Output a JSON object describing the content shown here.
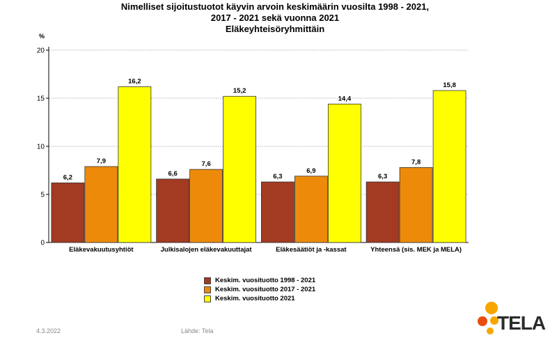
{
  "title_lines": [
    "Nimelliset sijoitustuotot käyvin arvoin keskimäärin vuosilta 1998 - 2021,",
    "2017 - 2021 sekä vuonna 2021",
    "Eläkeyhteisöryhmittäin"
  ],
  "chart_data": {
    "type": "bar",
    "title": "Nimelliset sijoitustuotot käyvin arvoin keskimäärin vuosilta 1998 - 2021, 2017 - 2021 sekä vuonna 2021 Eläkeyhteisöryhmittäin",
    "ylabel": "%",
    "xlabel": "",
    "ylim": [
      0,
      20
    ],
    "yticks": [
      0,
      5,
      10,
      15,
      20
    ],
    "grid": true,
    "legend_position": "bottom",
    "categories": [
      "Eläkevakuutusyhtiöt",
      "Julkisalojen eläkevakuuttajat",
      "Eläkesäätiöt ja -kassat",
      "Yhteensä (sis. MEK ja MELA)"
    ],
    "series": [
      {
        "name": "Keskim. vuosituotto 1998 - 2021",
        "color": "#a33a22",
        "values": [
          6.2,
          6.6,
          6.3,
          6.3
        ],
        "labels": [
          "6,2",
          "6,6",
          "6,3",
          "6,3"
        ]
      },
      {
        "name": "Keskim. vuosituotto 2017 - 2021",
        "color": "#ee8a0a",
        "values": [
          7.9,
          7.6,
          6.9,
          7.8
        ],
        "labels": [
          "7,9",
          "7,6",
          "6,9",
          "7,8"
        ]
      },
      {
        "name": "Keskim. vuosituotto 2021",
        "color": "#ffff00",
        "values": [
          16.2,
          15.2,
          14.4,
          15.8
        ],
        "labels": [
          "16,2",
          "15,2",
          "14,4",
          "15,8"
        ]
      }
    ]
  },
  "footer": {
    "date": "4.3.2022",
    "source": "Lähde: Tela"
  },
  "logo": {
    "text": "TELA",
    "colors": [
      "#f7a600",
      "#e84e0f"
    ]
  }
}
